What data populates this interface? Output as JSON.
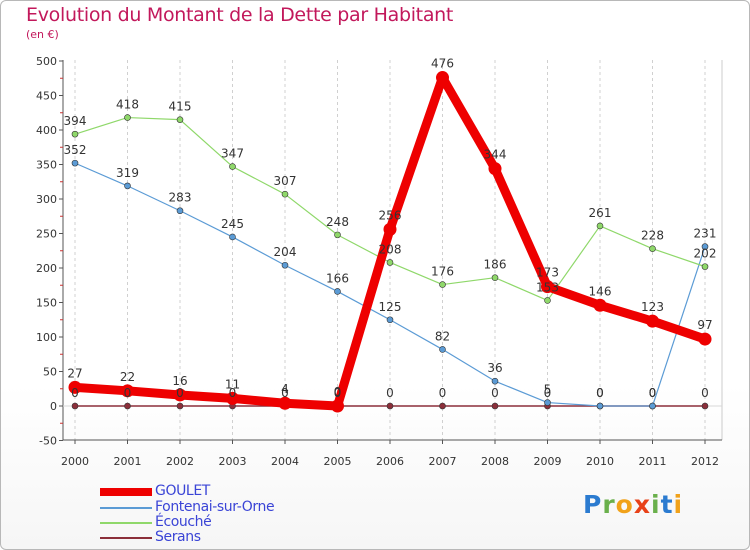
{
  "title": "Evolution du Montant de la Dette par Habitant",
  "subtitle": "(en €)",
  "logo": {
    "text": "Proxiti",
    "letters": [
      {
        "ch": "P",
        "color": "#2b7bd0"
      },
      {
        "ch": "r",
        "color": "#6ab04c"
      },
      {
        "ch": "o",
        "color": "#f1a21a"
      },
      {
        "ch": "x",
        "color": "#e84118"
      },
      {
        "ch": "i",
        "color": "#6ab04c"
      },
      {
        "ch": "t",
        "color": "#2b7bd0"
      },
      {
        "ch": "i",
        "color": "#f1a21a"
      }
    ]
  },
  "chart_data": {
    "type": "line",
    "title": "Evolution du Montant de la Dette par Habitant",
    "subtitle": "(en €)",
    "xlabel": "",
    "ylabel": "",
    "x": [
      "2000",
      "2001",
      "2002",
      "2003",
      "2004",
      "2005",
      "2006",
      "2007",
      "2008",
      "2009",
      "2010",
      "2011",
      "2012"
    ],
    "ylim": [
      -50,
      500
    ],
    "yticks": [
      -50,
      0,
      50,
      100,
      150,
      200,
      250,
      300,
      350,
      400,
      450,
      500
    ],
    "grid": "vertical-dashed",
    "legend": "bottom-left",
    "series": [
      {
        "name": "Serans",
        "color": "#8b2f3a",
        "values": [
          0,
          0,
          0,
          0,
          0,
          0,
          0,
          0,
          0,
          0,
          0,
          0,
          0
        ],
        "labels": []
      },
      {
        "name": "Fontenai-sur-Orne",
        "color": "#5b9bd5",
        "values": [
          352,
          319,
          283,
          245,
          204,
          166,
          125,
          82,
          36,
          5,
          0,
          0,
          231
        ],
        "labels": [
          "352",
          "319",
          "283",
          "245",
          "204",
          "166",
          "125",
          "82",
          "36",
          "5",
          "0",
          "0",
          "231"
        ]
      },
      {
        "name": "Écouché",
        "color": "#8fd86a",
        "values": [
          394,
          418,
          415,
          347,
          307,
          248,
          208,
          176,
          186,
          153,
          261,
          228,
          202
        ],
        "labels": [
          "394",
          "418",
          "415",
          "347",
          "307",
          "248",
          "208",
          "176",
          "186",
          "153",
          "261",
          "228",
          "202"
        ]
      },
      {
        "name": "GOULET",
        "color": "#ee0000",
        "values": [
          27,
          22,
          16,
          11,
          4,
          0,
          256,
          476,
          344,
          173,
          146,
          123,
          97
        ],
        "labels": [
          "27",
          "22",
          "16",
          "11",
          "4",
          "0",
          "256",
          "476",
          "344",
          "173",
          "146",
          "123",
          "97"
        ]
      }
    ],
    "zero_labels": [
      "0",
      "0",
      "0",
      "0",
      "0",
      "0",
      "0",
      "0",
      "0",
      "0",
      "0",
      "0",
      "0"
    ],
    "legend_order": [
      "GOULET",
      "Fontenai-sur-Orne",
      "Écouché",
      "Serans"
    ]
  }
}
